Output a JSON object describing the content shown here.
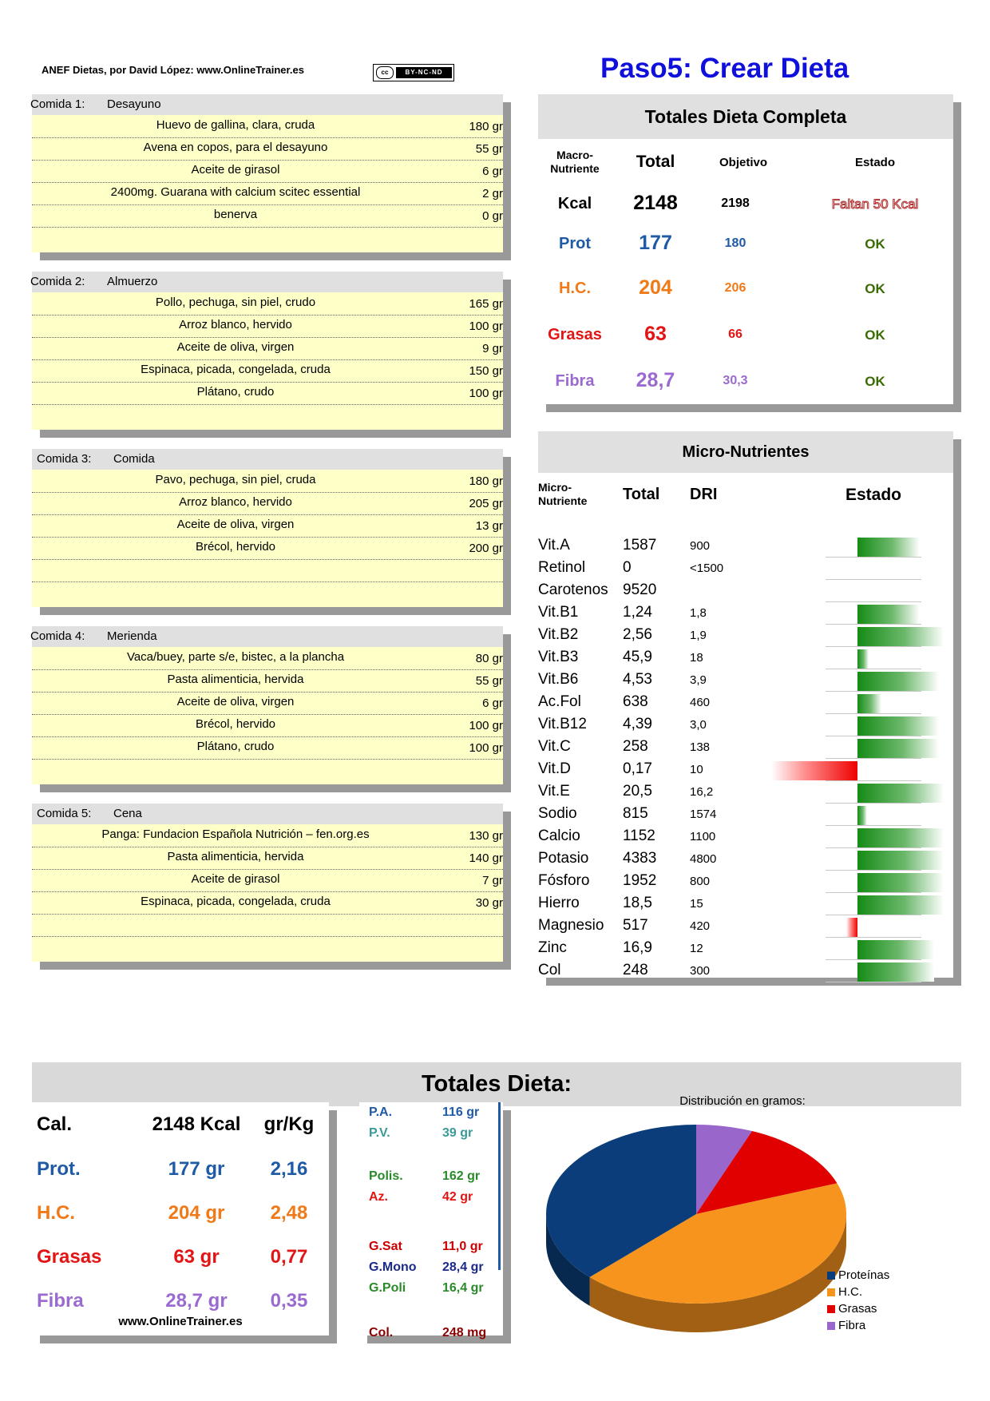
{
  "header": {
    "credit": "ANEF Dietas, por David López:  www.OnlineTrainer.es",
    "license_cc": "cc",
    "license_text": "BY-NC-ND",
    "title": "Paso5: Crear Dieta"
  },
  "meals": [
    {
      "num": "Comida 1:",
      "name": "Desayuno",
      "items": [
        {
          "food": "Huevo de gallina, clara, cruda",
          "qty": "180 gr"
        },
        {
          "food": "Avena en copos, para el desayuno",
          "qty": "55 gr"
        },
        {
          "food": "Aceite de girasol",
          "qty": "6 gr"
        },
        {
          "food": "2400mg. Guarana with calcium scitec essential",
          "qty": "2 gr"
        },
        {
          "food": "benerva",
          "qty": "0 gr"
        }
      ]
    },
    {
      "num": "Comida 2:",
      "name": "Almuerzo",
      "items": [
        {
          "food": "Pollo, pechuga, sin piel, crudo",
          "qty": "165 gr"
        },
        {
          "food": "Arroz blanco, hervido",
          "qty": "100 gr"
        },
        {
          "food": "Aceite de oliva, virgen",
          "qty": "9 gr"
        },
        {
          "food": "Espinaca, picada, congelada, cruda",
          "qty": "150 gr"
        },
        {
          "food": "Plátano, crudo",
          "qty": "100 gr"
        }
      ]
    },
    {
      "num": "Comida 3:",
      "name": "Comida",
      "items": [
        {
          "food": "Pavo, pechuga, sin piel, cruda",
          "qty": "180 gr"
        },
        {
          "food": "Arroz blanco, hervido",
          "qty": "205 gr"
        },
        {
          "food": "Aceite de oliva, virgen",
          "qty": "13 gr"
        },
        {
          "food": "Brécol, hervido",
          "qty": "200 gr"
        }
      ]
    },
    {
      "num": "Comida 4:",
      "name": "Merienda",
      "items": [
        {
          "food": "Vaca/buey, parte s/e, bistec, a la plancha",
          "qty": "80 gr"
        },
        {
          "food": "Pasta alimenticia, hervida",
          "qty": "55 gr"
        },
        {
          "food": "Aceite de oliva, virgen",
          "qty": "6 gr"
        },
        {
          "food": "Brécol, hervido",
          "qty": "100 gr"
        },
        {
          "food": "Plátano, crudo",
          "qty": "100 gr"
        }
      ]
    },
    {
      "num": "Comida 5:",
      "name": "Cena",
      "items": [
        {
          "food": "Panga: Fundacion Española Nutrición – fen.org.es",
          "qty": "130 gr"
        },
        {
          "food": "Pasta alimenticia, hervida",
          "qty": "140 gr"
        },
        {
          "food": "Aceite de girasol",
          "qty": "7 gr"
        },
        {
          "food": "Espinaca, picada, congelada, cruda",
          "qty": "30 gr"
        }
      ]
    }
  ],
  "totals_panel": {
    "title": "Totales Dieta Completa",
    "col_macro": "Macro-\nNutriente",
    "col_total": "Total",
    "col_obj": "Objetivo",
    "col_estado": "Estado",
    "rows": [
      {
        "label": "Kcal",
        "total": "2148",
        "obj": "2198",
        "estado": "Faltan 50 Kcal",
        "color": "#000000"
      },
      {
        "label": "Prot",
        "total": "177",
        "obj": "180",
        "estado": "OK",
        "color": "#1f5aa6"
      },
      {
        "label": "H.C.",
        "total": "204",
        "obj": "206",
        "estado": "OK",
        "color": "#f07a18"
      },
      {
        "label": "Grasas",
        "total": "63",
        "obj": "66",
        "estado": "OK",
        "color": "#e31414"
      },
      {
        "label": "Fibra",
        "total": "28,7",
        "obj": "30,3",
        "estado": "OK",
        "color": "#9b6ad0"
      }
    ]
  },
  "micro_panel": {
    "title": "Micro-Nutrientes",
    "col_micro": "Micro-\nNutriente",
    "col_total": "Total",
    "col_dri": "DRI",
    "col_estado": "Estado",
    "rows": [
      {
        "name": "Vit.A",
        "total": "1587",
        "dri": "900",
        "status": 0.65
      },
      {
        "name": "Retinol",
        "total": "0",
        "dri": "<1500",
        "status": 0
      },
      {
        "name": "Carotenos",
        "total": "9520",
        "dri": "",
        "status": 0
      },
      {
        "name": "Vit.B1",
        "total": "1,24",
        "dri": "1,8",
        "status": 0.65
      },
      {
        "name": "Vit.B2",
        "total": "2,56",
        "dri": "1,9",
        "status": 0.9
      },
      {
        "name": "Vit.B3",
        "total": "45,9",
        "dri": "18",
        "status": 0.12
      },
      {
        "name": "Vit.B6",
        "total": "4,53",
        "dri": "3,9",
        "status": 0.85
      },
      {
        "name": "Ac.Fol",
        "total": "638",
        "dri": "460",
        "status": 0.25
      },
      {
        "name": "Vit.B12",
        "total": "4,39",
        "dri": "3,0",
        "status": 0.85
      },
      {
        "name": "Vit.C",
        "total": "258",
        "dri": "138",
        "status": 0.85
      },
      {
        "name": "Vit.D",
        "total": "0,17",
        "dri": "10",
        "status": -0.9
      },
      {
        "name": "Vit.E",
        "total": "20,5",
        "dri": "16,2",
        "status": 0.9
      },
      {
        "name": "Sodio",
        "total": "815",
        "dri": "1574",
        "status": 0.1
      },
      {
        "name": "Calcio",
        "total": "1152",
        "dri": "1100",
        "status": 0.9
      },
      {
        "name": "Potasio",
        "total": "4383",
        "dri": "4800",
        "status": 0.9
      },
      {
        "name": "Fósforo",
        "total": "1952",
        "dri": "800",
        "status": 0.9
      },
      {
        "name": "Hierro",
        "total": "18,5",
        "dri": "15",
        "status": 0.9
      },
      {
        "name": "Magnesio",
        "total": "517",
        "dri": "420",
        "status": -0.12
      },
      {
        "name": "Zinc",
        "total": "16,9",
        "dri": "12",
        "status": 0.8
      },
      {
        "name": "Col",
        "total": "248",
        "dri": "300",
        "status": 0.8
      }
    ]
  },
  "bottom": {
    "title": "Totales Dieta:",
    "cal_label": "Cal.",
    "cal_value": "2148 Kcal",
    "grkg_label": "gr/Kg",
    "rows": [
      {
        "label": "Prot.",
        "value": "177 gr",
        "grkg": "2,16",
        "color": "#1f5aa6"
      },
      {
        "label": "H.C.",
        "value": "204 gr",
        "grkg": "2,48",
        "color": "#f07a18"
      },
      {
        "label": "Grasas",
        "value": "63 gr",
        "grkg": "0,77",
        "color": "#e31414"
      },
      {
        "label": "Fibra",
        "value": "28,7 gr",
        "grkg": "0,35",
        "color": "#9b6ad0"
      }
    ],
    "site": "www.OnlineTrainer.es",
    "details": [
      {
        "k": "P.A.",
        "v": "116 gr",
        "color": "#1f5aa6"
      },
      {
        "k": "P.V.",
        "v": "39 gr",
        "color": "#3a9a9a"
      },
      {
        "k": "Polis.",
        "v": "162 gr",
        "color": "#2a8a2a"
      },
      {
        "k": "Az.",
        "v": "42 gr",
        "color": "#e31414"
      },
      {
        "k": "G.Sat",
        "v": "11,0 gr",
        "color": "#cc0000"
      },
      {
        "k": "G.Mono",
        "v": "28,4 gr",
        "color": "#1a2a8a"
      },
      {
        "k": "G.Poli",
        "v": "16,4 gr",
        "color": "#2a8a2a"
      },
      {
        "k": "Col.",
        "v": "248 mg",
        "color": "#8a0000"
      }
    ]
  },
  "chart_data": {
    "type": "pie",
    "title": "Distribución en gramos:",
    "categories": [
      "Proteínas",
      "H.C.",
      "Grasas",
      "Fibra"
    ],
    "values": [
      177,
      204,
      63,
      28.7
    ],
    "colors": [
      "#0b3d7a",
      "#f7941d",
      "#e00000",
      "#9966cc"
    ]
  }
}
